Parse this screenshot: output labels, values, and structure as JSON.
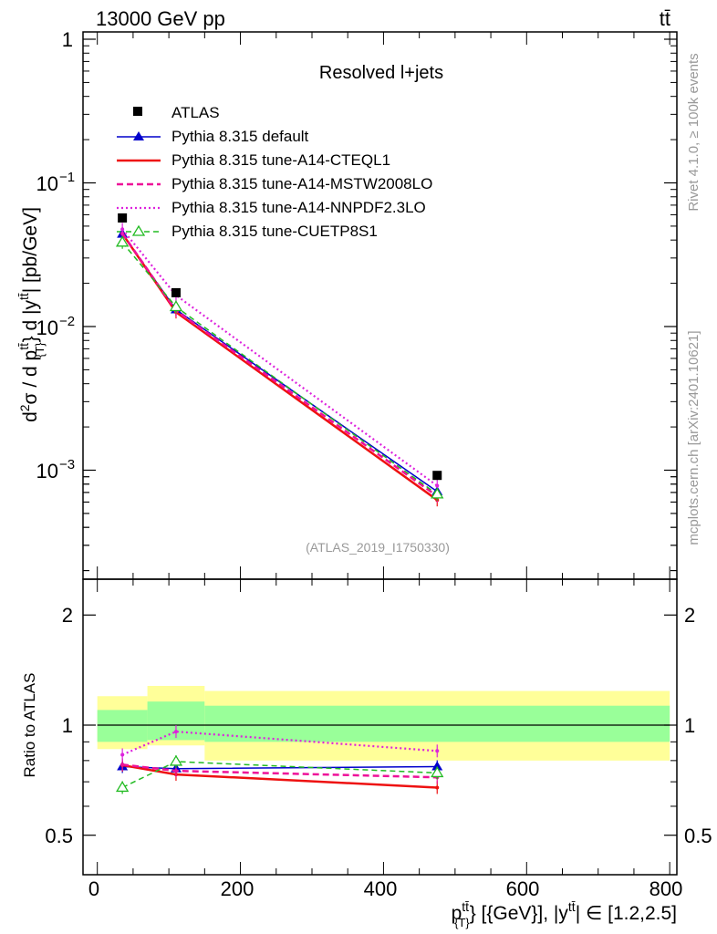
{
  "header": {
    "energy": "13000 GeV pp",
    "process": "tt̄",
    "analysis_title": "Resolved l+jets",
    "watermark": "(ATLAS_2019_I1750330)",
    "rivet_label": "Rivet 4.1.0, ≥ 100k events",
    "mcplots_label": "mcplots.cern.ch [arXiv:2401.10621]"
  },
  "upper_panel": {
    "ylabel": "d²σ / d p_T^{tt̄} d |y^{tt̄}| [pb/GeV]",
    "ylabel_parts": {
      "a": "d",
      "b": "2",
      "c": "σ / d p",
      "d": "tt̄",
      "e": "{T}",
      "f": "} d |y",
      "g": "tt̄",
      "h": "| [pb/GeV]"
    },
    "ytick_labels": {
      "one": "1",
      "m1_base": "10",
      "m1_exp": "−1",
      "m2_base": "10",
      "m2_exp": "−2",
      "m3_base": "10",
      "m3_exp": "−3"
    }
  },
  "lower_panel": {
    "ylabel": "Ratio to ATLAS",
    "ytick_labels": [
      "0.5",
      "1",
      "2"
    ],
    "ytick_labels_right": [
      "0.5",
      "1",
      "2"
    ]
  },
  "x_axis": {
    "tick_labels": [
      "0",
      "200",
      "400",
      "600",
      "800"
    ],
    "xlabel": "p_T^{tt̄} [{GeV}], |y^{tt̄}| ∈ [1.2,2.5]",
    "xlabel_parts": {
      "a": "p",
      "b": "tt̄",
      "c": "{T}",
      "d": "} [{GeV}], |y",
      "e": "tt̄",
      "f": "| ∈ [1.2,2.5]"
    }
  },
  "legend": [
    {
      "label": "ATLAS"
    },
    {
      "label": "Pythia 8.315 default"
    },
    {
      "label": "Pythia 8.315 tune-A14-CTEQL1"
    },
    {
      "label": "Pythia 8.315 tune-A14-MSTW2008LO"
    },
    {
      "label": "Pythia 8.315 tune-A14-NNPDF2.3LO"
    },
    {
      "label": "Pythia 8.315 tune-CUETP8S1"
    }
  ],
  "colors": {
    "data": "#000000",
    "default": "#0000cc",
    "cteql1": "#ee1111",
    "mstw": "#ee1199",
    "nnpdf": "#dd22dd",
    "cuetp": "#22bb22",
    "band_outer": "#ffff99",
    "band_inner": "#99ff99",
    "side_text": "#999999"
  },
  "chart_data": {
    "type": "line",
    "title": "Resolved l+jets",
    "xlabel": "p_T^{tt̄} [{GeV}], |y^{tt̄}| ∈ [1.2,2.5]",
    "ylabel": "d²σ / d p_T^{tt̄} d |y^{tt̄}| [pb/GeV]",
    "xlim": [
      -20,
      810
    ],
    "ylim": [
      0.0002,
      1.2
    ],
    "yscale": "log",
    "bins": [
      [
        0,
        70
      ],
      [
        70,
        150
      ],
      [
        150,
        800
      ]
    ],
    "x": [
      35,
      110,
      475
    ],
    "data": {
      "name": "ATLAS",
      "values": [
        0.057,
        0.0172,
        0.00092
      ]
    },
    "series": [
      {
        "name": "Pythia 8.315 default",
        "key": "default",
        "values": [
          0.044,
          0.0131,
          0.00071
        ],
        "style": "solid-triangle"
      },
      {
        "name": "Pythia 8.315 tune-A14-CTEQL1",
        "key": "cteql1",
        "values": [
          0.0443,
          0.0126,
          0.00062
        ],
        "style": "solid"
      },
      {
        "name": "Pythia 8.315 tune-A14-MSTW2008LO",
        "key": "mstw",
        "values": [
          0.0445,
          0.0129,
          0.00066
        ],
        "style": "dashed"
      },
      {
        "name": "Pythia 8.315 tune-A14-NNPDF2.3LO",
        "key": "nnpdf",
        "values": [
          0.0475,
          0.0165,
          0.00078
        ],
        "style": "dotted"
      },
      {
        "name": "Pythia 8.315 tune-CUETP8S1",
        "key": "cuetp",
        "values": [
          0.0385,
          0.0137,
          0.00068
        ],
        "style": "dashed-open-triangle"
      }
    ],
    "ratio": {
      "ylabel": "Ratio to ATLAS",
      "ylim": [
        0.4,
        2.5
      ],
      "yscale": "log",
      "band_outer": [
        [
          0.86,
          1.2
        ],
        [
          0.88,
          1.28
        ],
        [
          0.8,
          1.24
        ]
      ],
      "band_inner": [
        [
          0.9,
          1.1
        ],
        [
          0.91,
          1.16
        ],
        [
          0.9,
          1.13
        ]
      ],
      "series": [
        {
          "key": "default",
          "values": [
            0.77,
            0.76,
            0.77
          ]
        },
        {
          "key": "cteql1",
          "values": [
            0.777,
            0.733,
            0.675
          ]
        },
        {
          "key": "mstw",
          "values": [
            0.78,
            0.75,
            0.72
          ]
        },
        {
          "key": "nnpdf",
          "values": [
            0.83,
            0.96,
            0.85
          ]
        },
        {
          "key": "cuetp",
          "values": [
            0.675,
            0.795,
            0.74
          ]
        }
      ]
    }
  }
}
